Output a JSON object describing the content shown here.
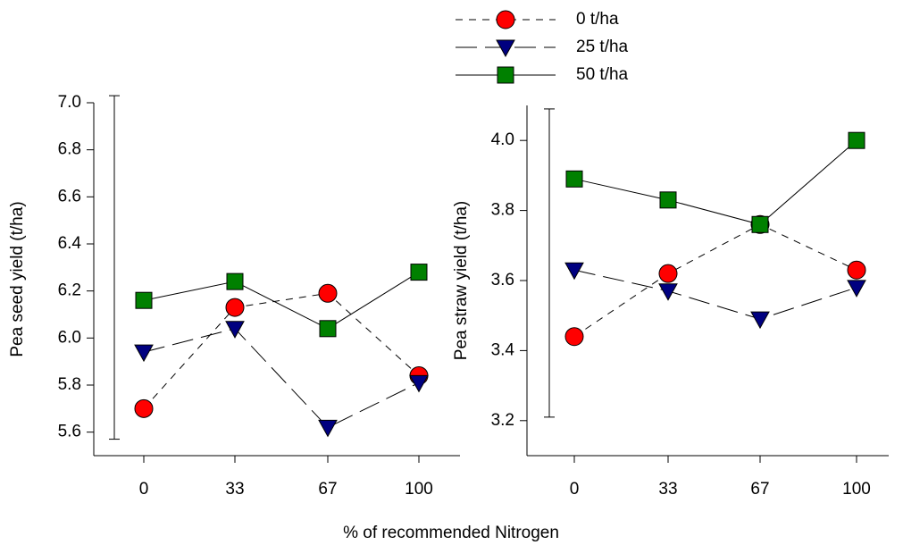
{
  "x_label": "% of recommended Nitrogen",
  "chart_data": [
    {
      "type": "line",
      "y_label": "Pea seed yield (t/ha)",
      "categories": [
        "0",
        "33",
        "67",
        "100"
      ],
      "series": [
        {
          "name": "0 t/ha",
          "color": "#ff0000",
          "marker": "circle",
          "dash": "8,7",
          "values": [
            5.7,
            6.13,
            6.19,
            5.84
          ]
        },
        {
          "name": "25 t/ha",
          "color": "#000080",
          "marker": "triangle-down",
          "dash": "24,9",
          "values": [
            5.94,
            6.04,
            5.62,
            5.81
          ]
        },
        {
          "name": "50 t/ha",
          "color": "#008000",
          "marker": "square",
          "dash": "none",
          "values": [
            6.16,
            6.24,
            6.04,
            6.28
          ]
        }
      ],
      "error_bar": [
        5.57,
        7.03
      ],
      "ylim": [
        5.5,
        7.0
      ],
      "yticks": [
        5.6,
        5.8,
        {
          "value": 6.0,
          "label": "6.0"
        },
        6.2,
        6.4,
        6.6,
        6.8,
        {
          "value": 7.0,
          "label": "7.0"
        }
      ]
    },
    {
      "type": "line",
      "y_label": "Pea straw yield (t/ha)",
      "categories": [
        "0",
        "33",
        "67",
        "100"
      ],
      "series": [
        {
          "color": "#ff0000",
          "marker": "circle",
          "dash": "8,7",
          "values": [
            3.44,
            3.62,
            3.76,
            3.63
          ]
        },
        {
          "color": "#000080",
          "marker": "triangle-down",
          "dash": "24,9",
          "values": [
            3.63,
            3.57,
            3.49,
            3.58
          ]
        },
        {
          "color": "#008000",
          "marker": "square",
          "dash": "none",
          "values": [
            3.89,
            3.83,
            3.76,
            4.0
          ]
        }
      ],
      "error_bar": [
        3.21,
        4.09
      ],
      "ylim": [
        3.1,
        4.1
      ],
      "yticks": [
        3.2,
        3.4,
        3.6,
        3.8,
        {
          "value": 4.0,
          "label": "4.0"
        }
      ]
    }
  ]
}
